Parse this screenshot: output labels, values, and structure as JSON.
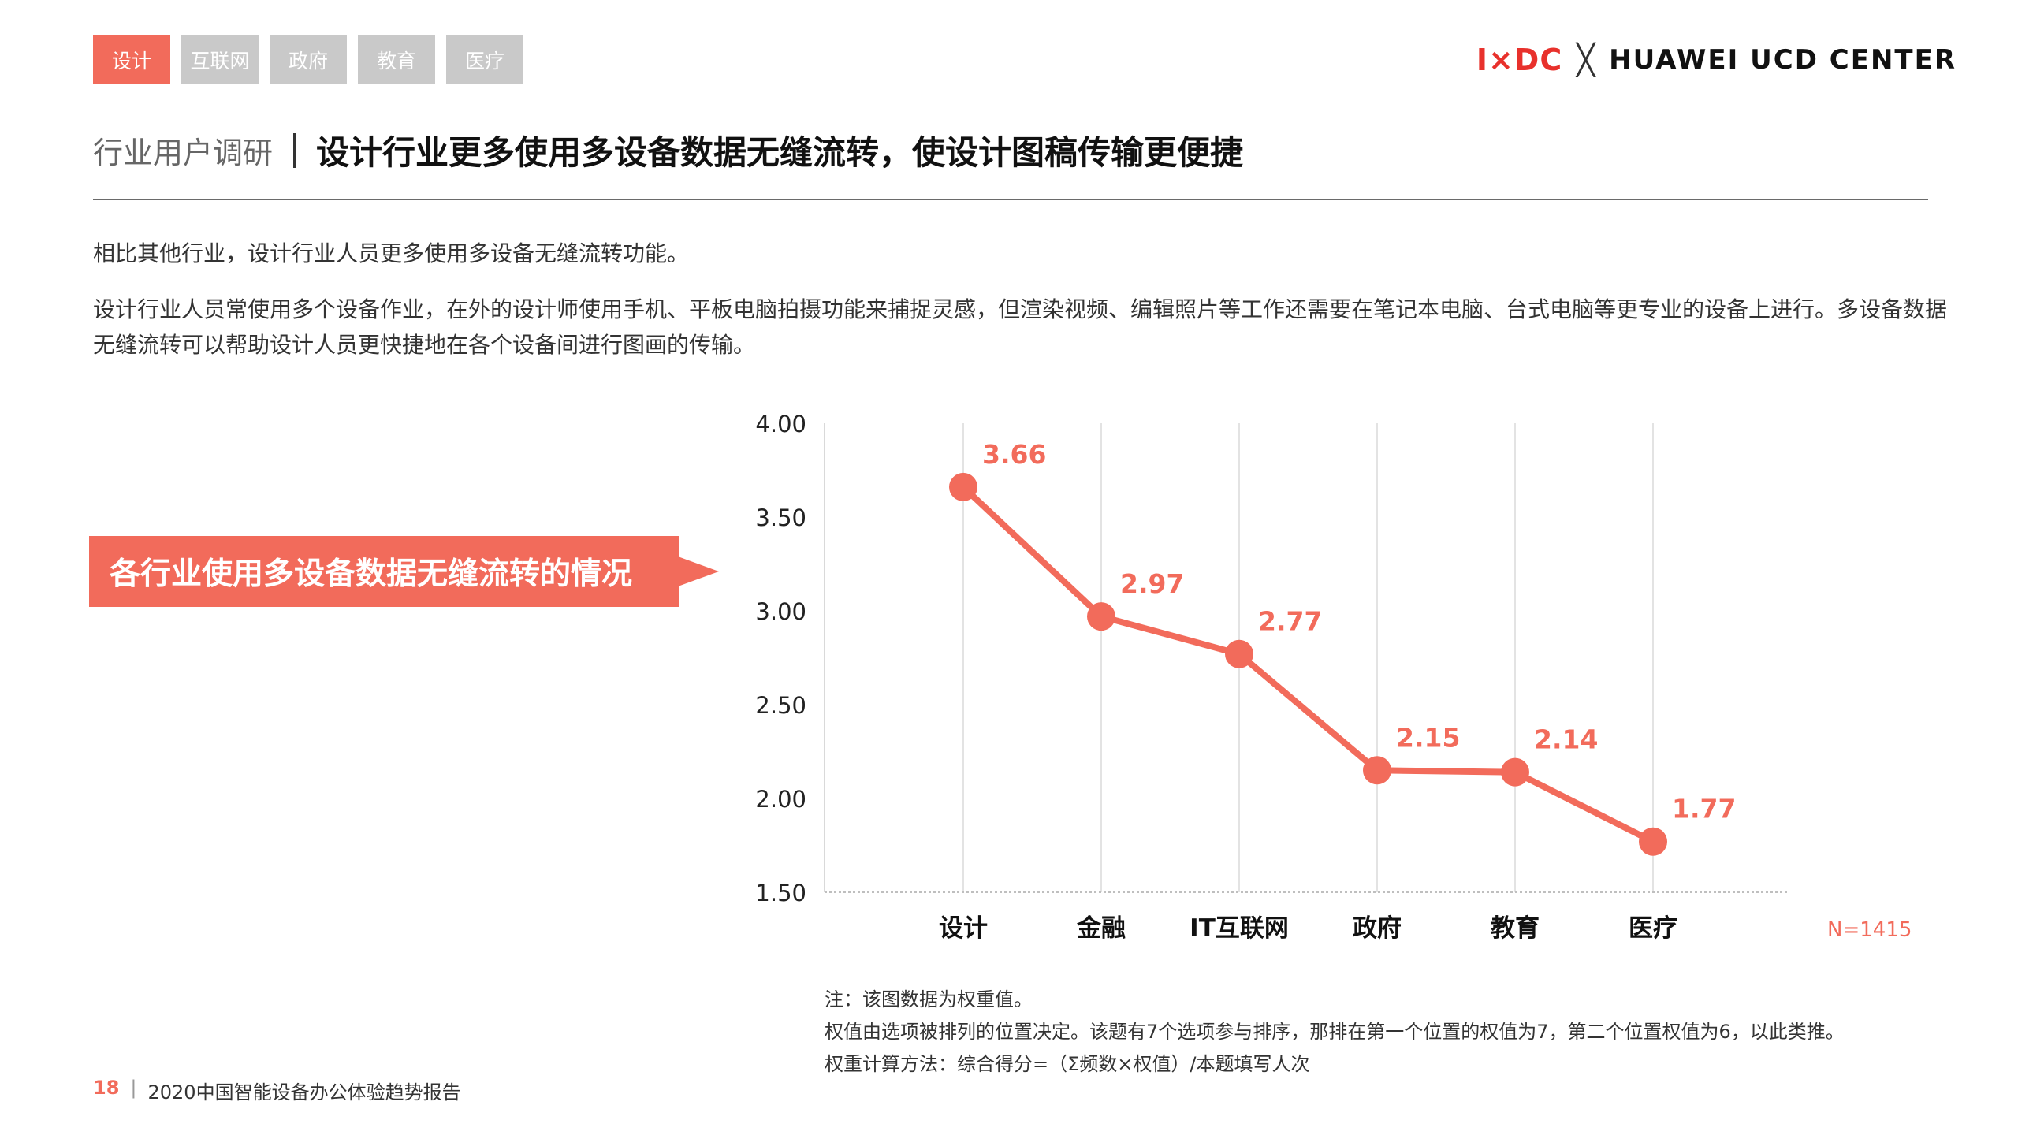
{
  "tabs": [
    {
      "label": "设计",
      "active": true
    },
    {
      "label": "互联网",
      "active": false
    },
    {
      "label": "政府",
      "active": false
    },
    {
      "label": "教育",
      "active": false
    },
    {
      "label": "医疗",
      "active": false
    }
  ],
  "brand": {
    "logo": "I×DC",
    "separator": "╳",
    "text": "HUAWEI UCD CENTER",
    "accent_color": "#e8312c"
  },
  "header": {
    "section": "行业用户调研",
    "title": "设计行业更多使用多设备数据无缝流转，使设计图稿传输更便捷"
  },
  "intro": {
    "p1": "相比其他行业，设计行业人员更多使用多设备无缝流转功能。",
    "p2": "设计行业人员常使用多个设备作业，在外的设计师使用手机、平板电脑拍摄功能来捕捉灵感，但渲染视频、编辑照片等工作还需要在笔记本电脑、台式电脑等更专业的设备上进行。多设备数据无缝流转可以帮助设计人员更快捷地在各个设备间进行图画的传输。"
  },
  "callout": {
    "text": "各行业使用多设备数据无缝流转的情况",
    "color": "#f26b5b"
  },
  "chart_data": {
    "type": "line",
    "title": "",
    "xlabel": "",
    "ylabel": "",
    "categories": [
      "设计",
      "金融",
      "IT互联网",
      "政府",
      "教育",
      "医疗"
    ],
    "series": [
      {
        "values": [
          3.66,
          2.97,
          2.77,
          2.15,
          2.14,
          1.77
        ],
        "color": "#f26b5b"
      }
    ],
    "data_labels": [
      "3.66",
      "2.97",
      "2.77",
      "2.15",
      "2.14",
      "1.77"
    ],
    "ylim": [
      1.5,
      4.0
    ],
    "yticks": [
      1.5,
      2.0,
      2.5,
      3.0,
      3.5,
      4.0
    ],
    "ytick_labels": [
      "1.50",
      "2.00",
      "2.50",
      "3.00",
      "3.50",
      "4.00"
    ],
    "grid": "vertical",
    "sample_note": "N=1415"
  },
  "notes": [
    "注：该图数据为权重值。",
    "权值由选项被排列的位置决定。该题有7个选项参与排序，那排在第一个位置的权值为7，第二个位置权值为6，以此类推。",
    "权重计算方法：综合得分=（Σ频数×权值）/本题填写人次"
  ],
  "footer": {
    "page": "18",
    "sep": "|",
    "title": "2020中国智能设备办公体验趋势报告"
  }
}
